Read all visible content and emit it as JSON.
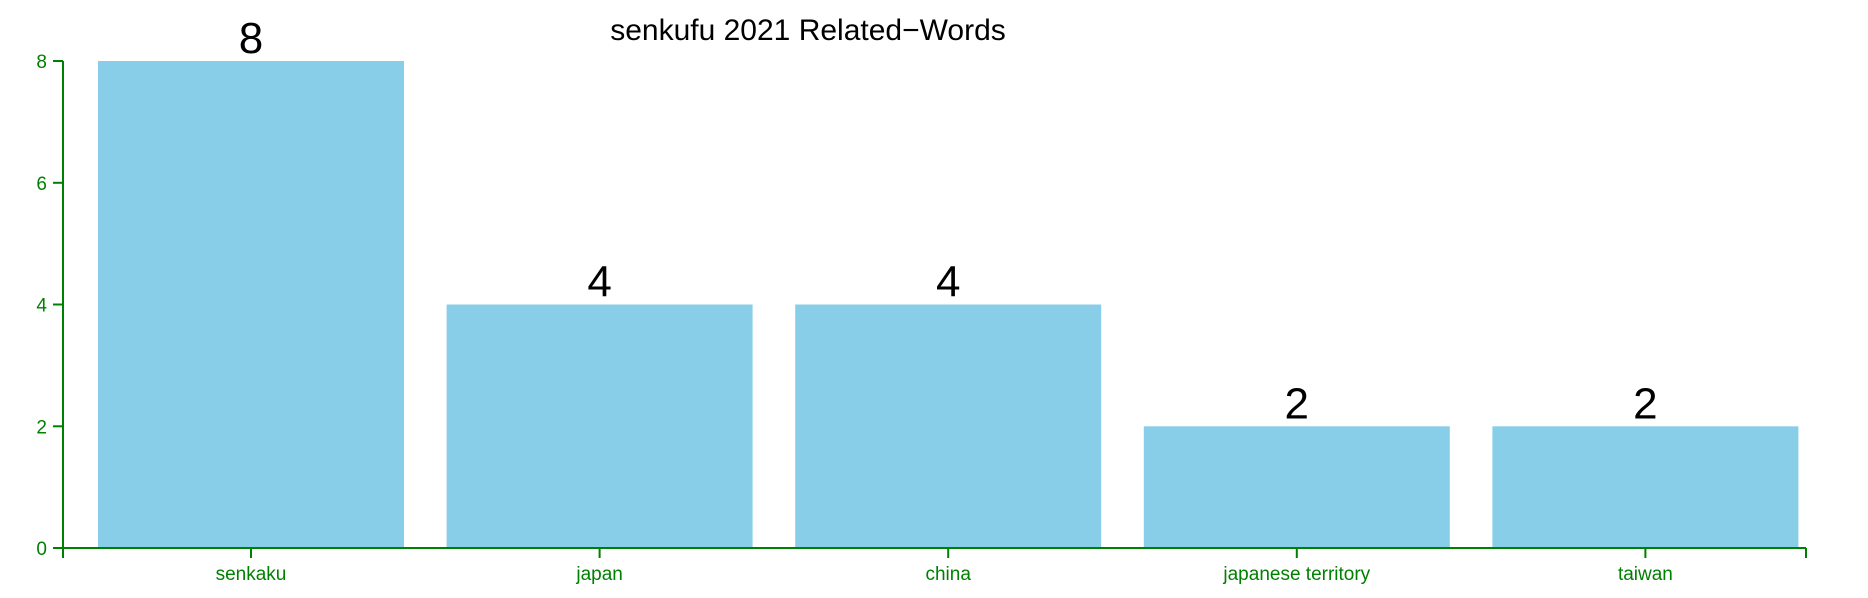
{
  "chart_data": {
    "type": "bar",
    "title": "senkufu 2021 Related−Words",
    "xlabel": "",
    "ylabel": "",
    "categories": [
      "senkaku",
      "japan",
      "china",
      "japanese territory",
      "taiwan"
    ],
    "values": [
      8,
      4,
      4,
      2,
      2
    ],
    "data_labels": [
      "8",
      "4",
      "4",
      "2",
      "2"
    ],
    "ylim": [
      0,
      8
    ],
    "yticks": [
      0,
      2,
      4,
      6,
      8
    ],
    "ytick_labels": [
      "0",
      "2",
      "4",
      "6",
      "8"
    ],
    "grid": false,
    "legend": "none",
    "colors": {
      "bar": "#89cee8",
      "axis": "#008000",
      "text": "#000000"
    }
  }
}
